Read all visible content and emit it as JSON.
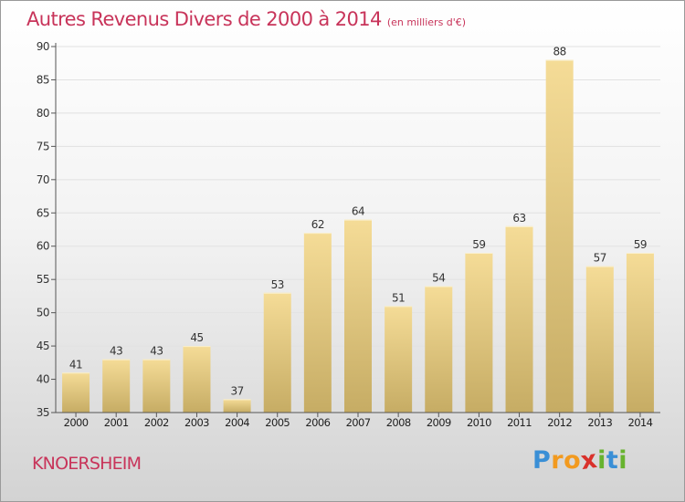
{
  "title": "Autres Revenus Divers de 2000 à 2014",
  "unit": "(en milliers d'€)",
  "commune": "KNOERSHEIM",
  "logo": {
    "letters": [
      "P",
      "r",
      "o",
      "x",
      "i",
      "t",
      "i"
    ],
    "colors": [
      "#3a8fd6",
      "#f29a1f",
      "#f29a1f",
      "#d9312b",
      "#67b32e",
      "#3a8fd6",
      "#67b32e"
    ]
  },
  "colors": {
    "title": "#c8345a",
    "bar_top": "#f5dc97",
    "bar_bottom": "#c6ac64",
    "axis": "#555555"
  },
  "chart_data": {
    "type": "bar",
    "categories": [
      "2000",
      "2001",
      "2002",
      "2003",
      "2004",
      "2005",
      "2006",
      "2007",
      "2008",
      "2009",
      "2010",
      "2011",
      "2012",
      "2013",
      "2014"
    ],
    "values": [
      41,
      43,
      43,
      45,
      37,
      53,
      62,
      64,
      51,
      54,
      59,
      63,
      88,
      57,
      59
    ],
    "yticks": [
      35,
      40,
      45,
      50,
      55,
      60,
      65,
      70,
      75,
      80,
      85,
      90
    ],
    "ylim": [
      35,
      90
    ],
    "grid": true,
    "title": "Autres Revenus Divers de 2000 à 2014",
    "xlabel": "",
    "ylabel": ""
  }
}
